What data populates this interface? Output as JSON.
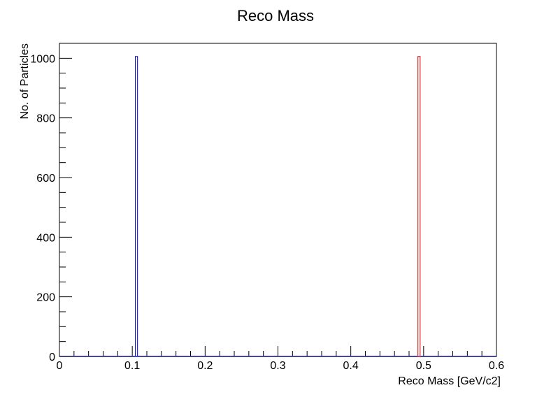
{
  "chart_data": {
    "type": "bar",
    "title": "Reco Mass",
    "xlabel": "Reco Mass [GeV/c2]",
    "ylabel": "No. of Particles",
    "xlim": [
      0,
      0.6
    ],
    "ylim": [
      0,
      1050
    ],
    "x_ticks": [
      "0",
      "0.1",
      "0.2",
      "0.3",
      "0.4",
      "0.5",
      "0.6"
    ],
    "y_ticks": [
      "0",
      "200",
      "400",
      "600",
      "800",
      "1000"
    ],
    "grid": false,
    "legend": "none",
    "series": [
      {
        "color": "#0000cc",
        "bins": [
          {
            "x": 0.1057,
            "value": 1006
          }
        ]
      },
      {
        "color": "#cc0000",
        "bins": [
          {
            "x": 0.4937,
            "value": 1006
          }
        ]
      }
    ]
  }
}
